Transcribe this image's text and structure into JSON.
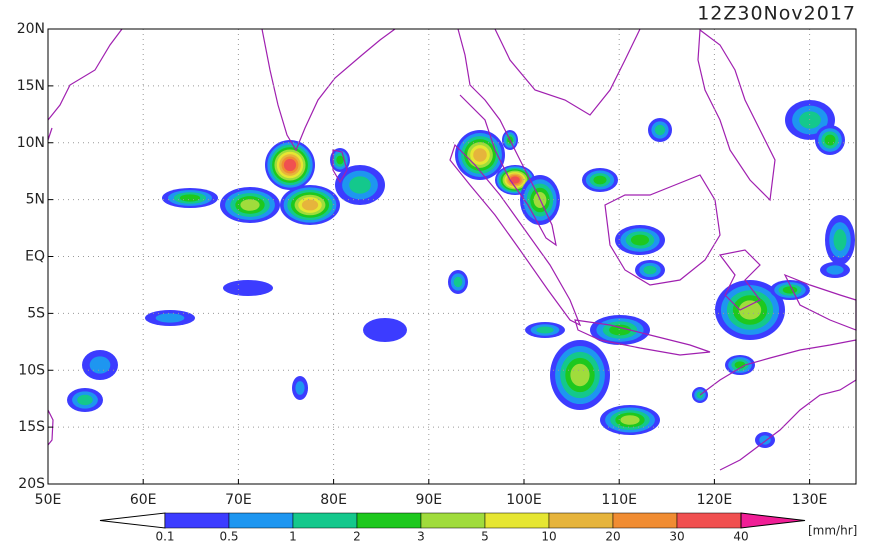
{
  "map": {
    "title": "12Z30Nov2017",
    "lat_labels": [
      "20N",
      "15N",
      "10N",
      "5N",
      "EQ",
      "5S",
      "10S",
      "15S",
      "20S"
    ],
    "lon_labels": [
      "50E",
      "60E",
      "70E",
      "80E",
      "90E",
      "100E",
      "110E",
      "120E",
      "130E"
    ],
    "colorbar": {
      "levels": [
        0.1,
        0.5,
        1,
        2,
        3,
        5,
        10,
        20,
        30,
        40
      ],
      "colors": [
        "#ffffff",
        "#3c3cff",
        "#1e96f0",
        "#14c88c",
        "#1ec81e",
        "#a0dc3c",
        "#e6e632",
        "#e6b43c",
        "#f08c32",
        "#f05050",
        "#f01e96"
      ],
      "unit": "[mm/hr]"
    }
  }
}
